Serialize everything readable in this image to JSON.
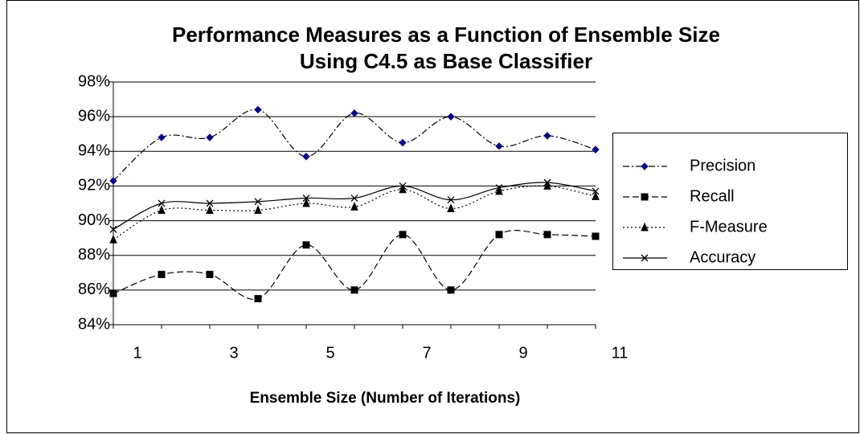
{
  "chart_data": {
    "type": "line",
    "title": "Performance Measures as a Function of Ensemble Size",
    "subtitle": "Using C4.5 as Base Classifier",
    "x_label": "Ensemble Size (Number of Iterations)",
    "categories": [
      "1",
      null,
      "3",
      null,
      "5",
      null,
      "7",
      null,
      "9",
      null,
      "11"
    ],
    "ylim": [
      84,
      98
    ],
    "yticks": [
      {
        "value": 84,
        "label": "84%"
      },
      {
        "value": 86,
        "label": "86%"
      },
      {
        "value": 88,
        "label": "88%"
      },
      {
        "value": 90,
        "label": "90%"
      },
      {
        "value": 92,
        "label": "92%"
      },
      {
        "value": 94,
        "label": "94%"
      },
      {
        "value": 96,
        "label": "96%"
      },
      {
        "value": 98,
        "label": "98%"
      }
    ],
    "grid": true,
    "legend": "right",
    "series": [
      {
        "name": "Precision",
        "color": "#000080",
        "marker": "diamond",
        "dash": "dashdot",
        "values": [
          92.3,
          94.8,
          94.8,
          96.4,
          93.7,
          96.2,
          94.5,
          96.0,
          94.3,
          94.9,
          94.1
        ]
      },
      {
        "name": "Recall",
        "color": "#000000",
        "marker": "square",
        "dash": "dashed",
        "values": [
          85.8,
          86.9,
          86.9,
          85.5,
          88.6,
          86.0,
          89.2,
          86.0,
          89.2,
          89.2,
          89.1
        ]
      },
      {
        "name": "F-Measure",
        "color": "#000000",
        "marker": "triangle",
        "dash": "dotted",
        "values": [
          88.9,
          90.6,
          90.6,
          90.6,
          91.0,
          90.8,
          91.8,
          90.7,
          91.7,
          92.0,
          91.4
        ]
      },
      {
        "name": "Accuracy",
        "color": "#000000",
        "marker": "x",
        "dash": "solid",
        "values": [
          89.5,
          91.0,
          91.0,
          91.1,
          91.3,
          91.3,
          92.0,
          91.2,
          91.9,
          92.2,
          91.7
        ]
      }
    ]
  }
}
